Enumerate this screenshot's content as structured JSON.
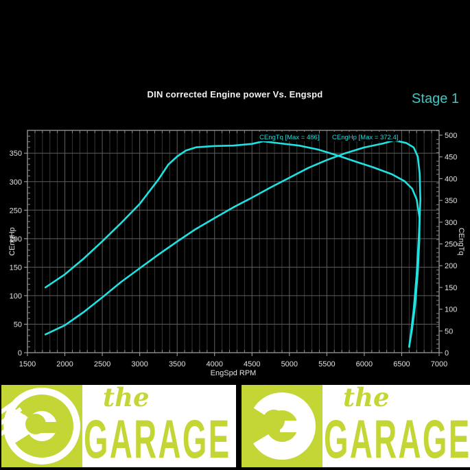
{
  "header": {
    "title": "DIN corrected Engine power Vs. Engspd",
    "stage_label": "Stage 1"
  },
  "colors": {
    "background": "#000000",
    "curve": "#1fe3e3",
    "stage_accent": "#3fc8c2",
    "grid_major": "#5f5f5f",
    "grid_minor": "#383838",
    "plot_border": "#a8a8a8",
    "axis_text": "#e2e2e2",
    "legend_text": "#25dede",
    "banner_lime": "#c3d635",
    "banner_white": "#ffffff"
  },
  "chart_data": {
    "type": "line",
    "title": "DIN corrected Engine power Vs. Engspd",
    "xlabel": "EngSpd RPM",
    "ylabel_left": "CEngHp",
    "ylabel_right": "CEngTq",
    "xlim": [
      1500,
      7000
    ],
    "x_tick_step": 500,
    "x_minor_step": 100,
    "ylim_left": [
      0,
      390
    ],
    "ylim_right": [
      0,
      511
    ],
    "y_tick_step": 50,
    "y_minor_step": 10,
    "y_ticks_left_max": 350,
    "y_ticks_right_max": 500,
    "grid": true,
    "legend_position": "top-inside",
    "legend": [
      {
        "label": "CEngTq [Max = 486]",
        "series": "CEngTq"
      },
      {
        "label": "CEngHp [Max = 372.4]",
        "series": "CEngHp"
      }
    ],
    "series": [
      {
        "name": "CEngTq",
        "axis": "right",
        "max": 486,
        "color": "#1fe3e3",
        "points": [
          [
            1740,
            150
          ],
          [
            2000,
            180
          ],
          [
            2250,
            216
          ],
          [
            2500,
            256
          ],
          [
            2750,
            298
          ],
          [
            3000,
            342
          ],
          [
            3250,
            398
          ],
          [
            3380,
            432
          ],
          [
            3500,
            451
          ],
          [
            3620,
            465
          ],
          [
            3750,
            472
          ],
          [
            4000,
            475
          ],
          [
            4250,
            476
          ],
          [
            4500,
            480
          ],
          [
            4650,
            486
          ],
          [
            4880,
            481
          ],
          [
            5130,
            476
          ],
          [
            5380,
            467
          ],
          [
            5630,
            454
          ],
          [
            5870,
            440
          ],
          [
            6120,
            426
          ],
          [
            6370,
            410
          ],
          [
            6540,
            394
          ],
          [
            6640,
            377
          ],
          [
            6700,
            352
          ],
          [
            6740,
            308
          ],
          [
            6735,
            255
          ],
          [
            6715,
            185
          ],
          [
            6680,
            110
          ],
          [
            6640,
            55
          ],
          [
            6600,
            15
          ]
        ]
      },
      {
        "name": "CEngHp",
        "axis": "left",
        "max": 372.4,
        "color": "#1fe3e3",
        "points": [
          [
            1740,
            32
          ],
          [
            2000,
            48
          ],
          [
            2250,
            71
          ],
          [
            2500,
            97
          ],
          [
            2750,
            124
          ],
          [
            3000,
            148
          ],
          [
            3250,
            172
          ],
          [
            3500,
            195
          ],
          [
            3750,
            217
          ],
          [
            4000,
            236
          ],
          [
            4250,
            255
          ],
          [
            4500,
            272
          ],
          [
            4750,
            290
          ],
          [
            5000,
            307
          ],
          [
            5250,
            324
          ],
          [
            5500,
            338
          ],
          [
            5750,
            350
          ],
          [
            6000,
            360
          ],
          [
            6250,
            367
          ],
          [
            6400,
            372.4
          ],
          [
            6560,
            368
          ],
          [
            6660,
            360
          ],
          [
            6715,
            344
          ],
          [
            6740,
            315
          ],
          [
            6750,
            268
          ],
          [
            6730,
            206
          ],
          [
            6700,
            138
          ],
          [
            6660,
            75
          ],
          [
            6620,
            30
          ],
          [
            6600,
            10
          ]
        ]
      }
    ]
  },
  "banner": {
    "the": "the",
    "garage": "GARAGE"
  }
}
